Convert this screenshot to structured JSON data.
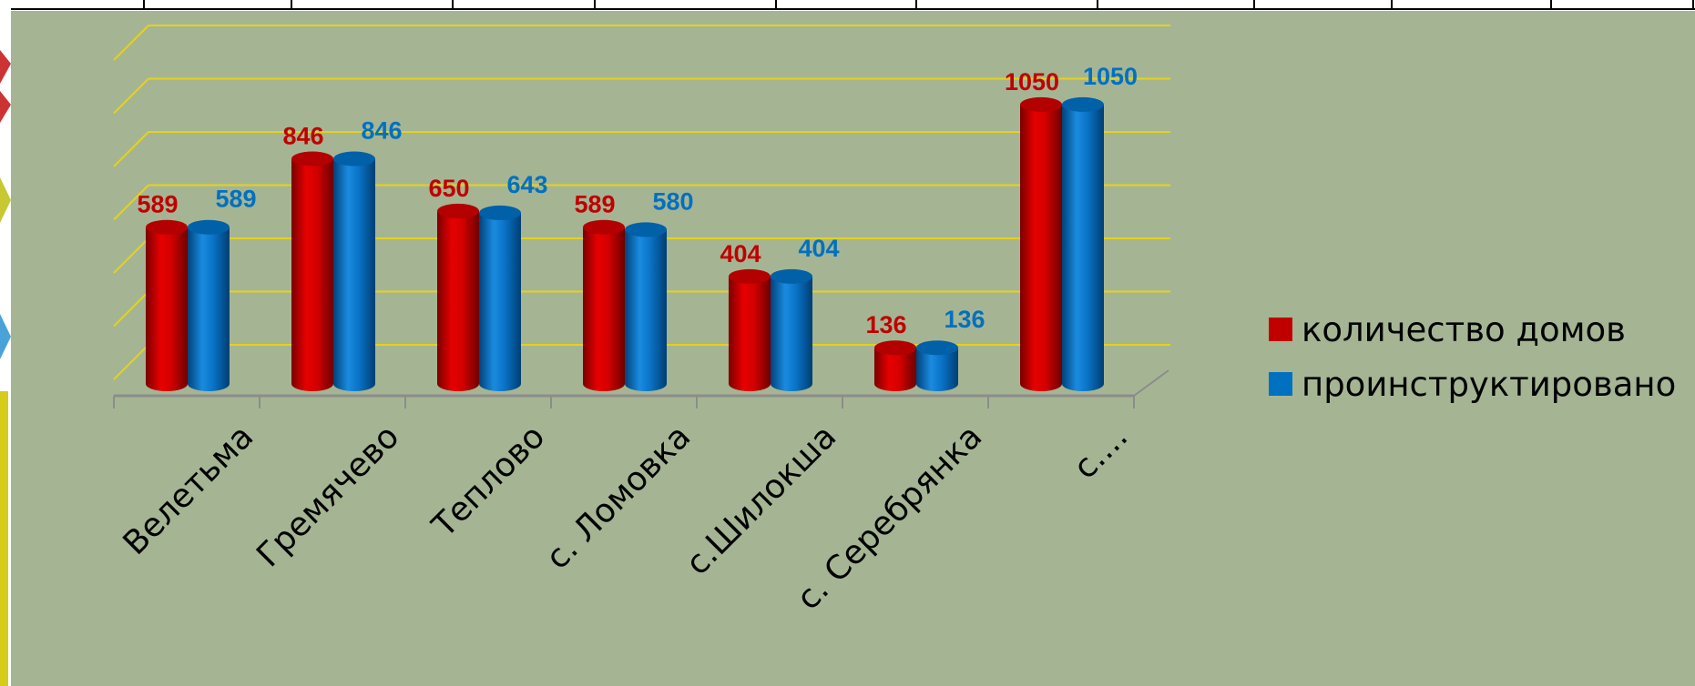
{
  "chart_data": {
    "type": "bar",
    "categories": [
      "Велетьма",
      "Гремячево",
      "Теплово",
      "с. Ломовка",
      "с.Шилокша",
      "с. Серебрянка",
      "с...."
    ],
    "series": [
      {
        "name": "количество домов",
        "color": "#c00000",
        "values": [
          589,
          846,
          650,
          589,
          404,
          136,
          1050
        ]
      },
      {
        "name": "проинструктировано",
        "color": "#0070c0",
        "values": [
          589,
          846,
          643,
          580,
          404,
          136,
          1050
        ]
      }
    ],
    "value_labels": [
      [
        "589",
        "846",
        "650",
        "589",
        "404",
        "136",
        "1050"
      ],
      [
        "589",
        "846",
        "643",
        "580",
        "404",
        "136",
        "1050"
      ]
    ],
    "ylim": [
      0,
      1200
    ],
    "grid": true,
    "legend_position": "right",
    "style": "3d-cylinder",
    "title": "",
    "xlabel": "",
    "ylabel": ""
  },
  "colors": {
    "background": "#a5b593",
    "gridline": "#e6d21a",
    "axis": "#8c8c8c"
  }
}
